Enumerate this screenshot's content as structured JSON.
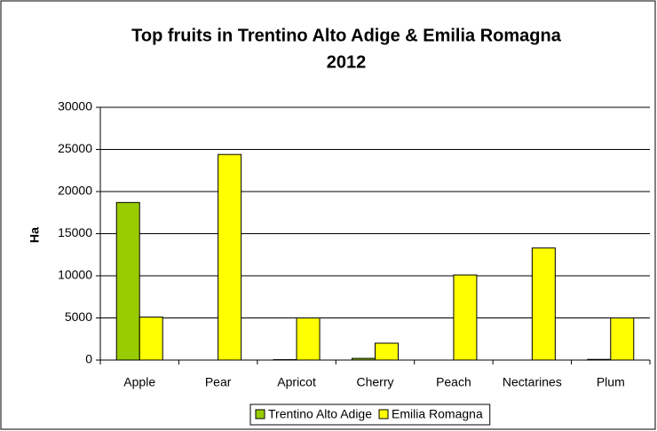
{
  "chart_data": {
    "type": "bar",
    "title": [
      "Top fruits in Trentino Alto Adige & Emilia Romagna",
      "2012"
    ],
    "y_label": "Ha",
    "categories": [
      "Apple",
      "Pear",
      "Apricot",
      "Cherry",
      "Peach",
      "Nectarines",
      "Plum"
    ],
    "series": [
      {
        "name": "Trentino Alto Adige",
        "color": "#99cc00",
        "values": [
          18700,
          0,
          50,
          200,
          0,
          0,
          80
        ]
      },
      {
        "name": "Emilia Romagna",
        "color": "#ffff00",
        "values": [
          5100,
          24400,
          5000,
          2000,
          10100,
          13300,
          5000
        ]
      }
    ],
    "ylim": [
      0,
      30000
    ],
    "yticks": [
      0,
      5000,
      10000,
      15000,
      20000,
      25000,
      30000
    ],
    "grid": true,
    "legend": "bottom"
  }
}
